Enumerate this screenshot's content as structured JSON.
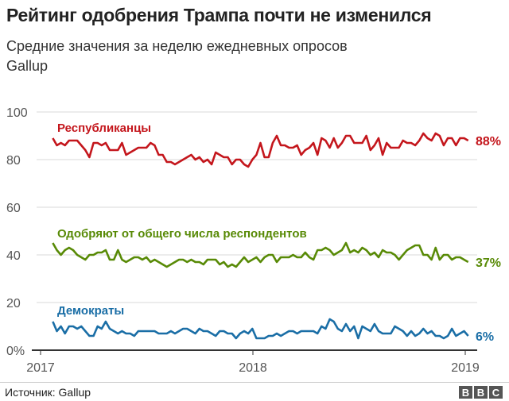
{
  "title": "Рейтинг одобрения Трампа почти не изменился",
  "subtitle": "Средние значения за неделю ежедневных опросов Gallup",
  "source": "Источник: Gallup",
  "logo": "BBC",
  "chart_data": {
    "type": "line",
    "ylim": [
      0,
      100
    ],
    "yticks": [
      "0%",
      "20",
      "40",
      "60",
      "80",
      "100"
    ],
    "xticks": [
      "2017",
      "2018",
      "2019"
    ],
    "grid": true,
    "dates": [
      "2017-01-22",
      "2017-01-29",
      "2017-02-05",
      "2017-02-12",
      "2017-02-19",
      "2017-02-26",
      "2017-03-05",
      "2017-03-12",
      "2017-03-19",
      "2017-03-26",
      "2017-04-02",
      "2017-04-09",
      "2017-04-16",
      "2017-04-23",
      "2017-04-30",
      "2017-05-07",
      "2017-05-14",
      "2017-05-21",
      "2017-05-28",
      "2017-06-04",
      "2017-06-11",
      "2017-06-18",
      "2017-06-25",
      "2017-07-02",
      "2017-07-09",
      "2017-07-16",
      "2017-07-23",
      "2017-07-30",
      "2017-08-06",
      "2017-08-13",
      "2017-08-20",
      "2017-08-27",
      "2017-09-03",
      "2017-09-10",
      "2017-09-17",
      "2017-09-24",
      "2017-10-01",
      "2017-10-08",
      "2017-10-15",
      "2017-10-22",
      "2017-10-29",
      "2017-11-05",
      "2017-11-12",
      "2017-11-19",
      "2017-11-26",
      "2017-12-03",
      "2017-12-10",
      "2017-12-17",
      "2017-12-24",
      "2017-12-31",
      "2018-01-07",
      "2018-01-14",
      "2018-01-21",
      "2018-01-28",
      "2018-02-04",
      "2018-02-11",
      "2018-02-18",
      "2018-02-25",
      "2018-03-04",
      "2018-03-11",
      "2018-03-18",
      "2018-03-25",
      "2018-04-01",
      "2018-04-08",
      "2018-04-15",
      "2018-04-22",
      "2018-04-29",
      "2018-05-06",
      "2018-05-13",
      "2018-05-20",
      "2018-05-27",
      "2018-06-03",
      "2018-06-10",
      "2018-06-17",
      "2018-06-24",
      "2018-07-01",
      "2018-07-08",
      "2018-07-15",
      "2018-07-22",
      "2018-07-29",
      "2018-08-05",
      "2018-08-12",
      "2018-08-19",
      "2018-08-26",
      "2018-09-02",
      "2018-09-09",
      "2018-09-16",
      "2018-09-23",
      "2018-09-30",
      "2018-10-07",
      "2018-10-14",
      "2018-10-21",
      "2018-10-28",
      "2018-11-04",
      "2018-11-11",
      "2018-11-18",
      "2018-11-25",
      "2018-12-02",
      "2018-12-09",
      "2018-12-16",
      "2018-12-23",
      "2018-12-30",
      "2019-01-06"
    ],
    "series": [
      {
        "name": "Республиканцы",
        "end_label": "88%",
        "color": "#c4161c",
        "values": [
          89,
          86,
          87,
          86,
          88,
          88,
          88,
          86,
          84,
          81,
          87,
          87,
          86,
          87,
          84,
          84,
          84,
          87,
          82,
          83,
          84,
          85,
          85,
          85,
          87,
          86,
          82,
          82,
          79,
          79,
          78,
          79,
          80,
          81,
          82,
          80,
          81,
          79,
          80,
          78,
          83,
          82,
          81,
          81,
          78,
          80,
          80,
          78,
          77,
          80,
          82,
          87,
          81,
          81,
          87,
          90,
          86,
          86,
          85,
          85,
          86,
          82,
          84,
          85,
          87,
          82,
          89,
          88,
          85,
          89,
          85,
          87,
          90,
          90,
          87,
          87,
          87,
          90,
          84,
          86,
          89,
          82,
          87,
          85,
          85,
          85,
          88,
          87,
          87,
          86,
          88,
          91,
          89,
          88,
          91,
          90,
          86,
          89,
          89,
          86,
          89,
          89,
          88
        ]
      },
      {
        "name": "Одобряют от общего числа респондентов",
        "end_label": "37%",
        "color": "#588a06",
        "values": [
          45,
          42,
          40,
          42,
          43,
          42,
          40,
          39,
          38,
          40,
          40,
          41,
          41,
          42,
          38,
          38,
          42,
          38,
          37,
          38,
          39,
          39,
          38,
          39,
          37,
          38,
          37,
          36,
          35,
          36,
          37,
          38,
          38,
          37,
          38,
          37,
          37,
          36,
          38,
          38,
          38,
          36,
          37,
          35,
          36,
          35,
          37,
          39,
          37,
          38,
          39,
          37,
          39,
          40,
          40,
          37,
          39,
          39,
          39,
          40,
          39,
          39,
          41,
          39,
          38,
          42,
          42,
          43,
          42,
          40,
          41,
          42,
          45,
          41,
          42,
          41,
          43,
          42,
          40,
          41,
          39,
          42,
          41,
          41,
          40,
          38,
          40,
          42,
          43,
          44,
          44,
          40,
          40,
          38,
          43,
          38,
          40,
          40,
          38,
          39,
          39,
          38,
          37
        ]
      },
      {
        "name": "Демократы",
        "end_label": "6%",
        "color": "#1a6ea6",
        "values": [
          12,
          8,
          10,
          7,
          10,
          10,
          9,
          10,
          8,
          6,
          6,
          10,
          9,
          12,
          9,
          8,
          7,
          8,
          7,
          7,
          6,
          8,
          8,
          8,
          8,
          8,
          7,
          7,
          7,
          8,
          7,
          8,
          9,
          9,
          8,
          7,
          9,
          8,
          8,
          7,
          6,
          8,
          8,
          7,
          7,
          5,
          7,
          8,
          7,
          9,
          5,
          5,
          5,
          6,
          6,
          7,
          6,
          7,
          8,
          8,
          7,
          8,
          8,
          8,
          8,
          7,
          10,
          9,
          13,
          12,
          9,
          8,
          11,
          8,
          10,
          5,
          10,
          9,
          8,
          11,
          8,
          7,
          7,
          7,
          10,
          9,
          8,
          6,
          8,
          6,
          7,
          9,
          7,
          8,
          6,
          6,
          5,
          6,
          9,
          6,
          7,
          8,
          6
        ]
      }
    ]
  }
}
